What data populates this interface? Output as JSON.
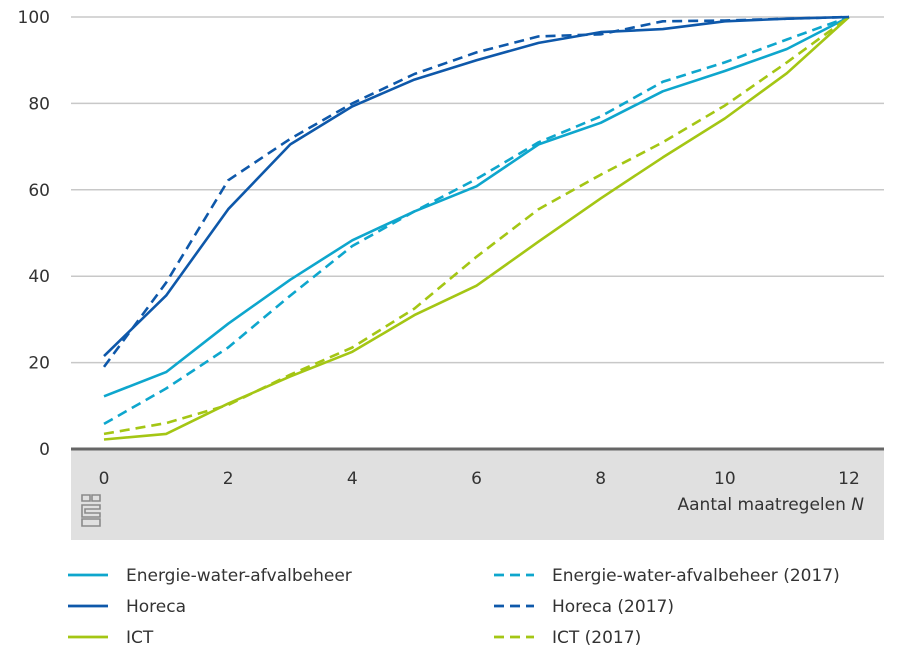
{
  "chart_data": {
    "type": "line",
    "xlabel": "Aantal maatregelen ",
    "xlabel_italic": "N",
    "xlim": [
      0,
      12
    ],
    "ylim": [
      0,
      100
    ],
    "x_ticks": [
      0,
      2,
      4,
      6,
      8,
      10,
      12
    ],
    "y_ticks": [
      0,
      20,
      40,
      60,
      80,
      100
    ],
    "grid": "horizontal",
    "legend_position": "bottom",
    "logo": "cbs-logo",
    "x": [
      0,
      1,
      2,
      3,
      4,
      5,
      6,
      7,
      8,
      9,
      10,
      11,
      12
    ],
    "series": [
      {
        "name": "Energie-water-afvalbeheer",
        "color": "#0ea6cd",
        "dashed": false,
        "values": [
          12.2,
          17.8,
          29,
          39.2,
          48.3,
          55,
          60.8,
          70.5,
          75.5,
          82.8,
          87.5,
          92.6,
          100
        ]
      },
      {
        "name": "Horeca",
        "color": "#0e58aa",
        "dashed": false,
        "values": [
          21.5,
          35.5,
          55.5,
          70.5,
          79.3,
          85.5,
          90,
          94,
          96.5,
          97.2,
          99,
          99.6,
          100
        ]
      },
      {
        "name": "ICT",
        "color": "#a4c614",
        "dashed": false,
        "values": [
          2.2,
          3.5,
          10.5,
          16.8,
          22.5,
          31,
          37.8,
          48,
          58,
          67.5,
          76.5,
          87,
          100
        ]
      },
      {
        "name": "Energie-water-afvalbeheer (2017)",
        "color": "#0ea6cd",
        "dashed": true,
        "values": [
          5.8,
          14,
          23.5,
          35.5,
          47,
          55,
          62.5,
          71,
          77,
          85,
          89.5,
          94.8,
          100
        ]
      },
      {
        "name": "Horeca (2017)",
        "color": "#0e58aa",
        "dashed": true,
        "values": [
          19,
          38.5,
          62.2,
          71.8,
          80,
          86.8,
          91.8,
          95.5,
          96,
          99,
          99.2,
          99.6,
          100
        ]
      },
      {
        "name": "ICT (2017)",
        "color": "#a4c614",
        "dashed": true,
        "values": [
          3.5,
          6,
          10.2,
          17.2,
          23.5,
          32.5,
          44.5,
          55.5,
          63.5,
          71,
          79.5,
          89.5,
          100
        ]
      }
    ]
  }
}
